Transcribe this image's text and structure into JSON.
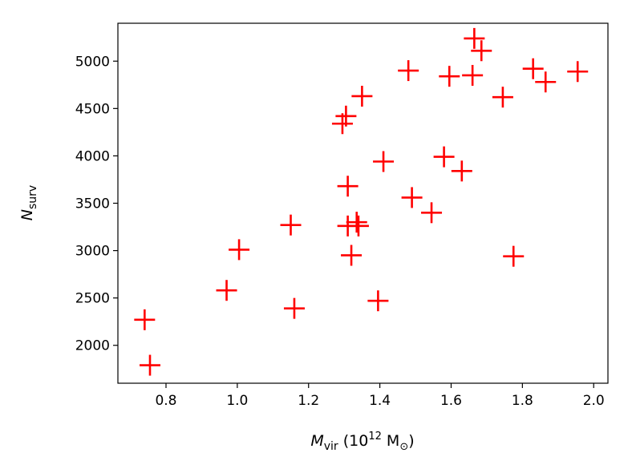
{
  "chart_data": {
    "type": "scatter",
    "xlabel_main": "M",
    "xlabel_sub": "vir",
    "xlabel_unit_open": " (10",
    "xlabel_unit_exp": "12",
    "xlabel_unit_mid": " M",
    "xlabel_unit_sub": "⊙",
    "xlabel_unit_close": ")",
    "ylabel_main": "N",
    "ylabel_sub": "surv",
    "xlim": [
      0.665,
      2.04
    ],
    "ylim": [
      1600,
      5400
    ],
    "xticks": [
      0.8,
      1.0,
      1.2,
      1.4,
      1.6,
      1.8,
      2.0
    ],
    "xtick_labels": [
      "0.8",
      "1.0",
      "1.2",
      "1.4",
      "1.6",
      "1.8",
      "2.0"
    ],
    "yticks": [
      2000,
      2500,
      3000,
      3500,
      4000,
      4500,
      5000
    ],
    "ytick_labels": [
      "2000",
      "2500",
      "3000",
      "3500",
      "4000",
      "4500",
      "5000"
    ],
    "marker": "+",
    "marker_color": "#ff0000",
    "grid": false,
    "points": [
      {
        "x": 0.74,
        "y": 2270
      },
      {
        "x": 0.755,
        "y": 1790
      },
      {
        "x": 0.97,
        "y": 2580
      },
      {
        "x": 1.005,
        "y": 3010
      },
      {
        "x": 1.15,
        "y": 3270
      },
      {
        "x": 1.16,
        "y": 2390
      },
      {
        "x": 1.295,
        "y": 4340
      },
      {
        "x": 1.305,
        "y": 4420
      },
      {
        "x": 1.31,
        "y": 3680
      },
      {
        "x": 1.31,
        "y": 3260
      },
      {
        "x": 1.32,
        "y": 2950
      },
      {
        "x": 1.335,
        "y": 3300
      },
      {
        "x": 1.34,
        "y": 3260
      },
      {
        "x": 1.35,
        "y": 4630
      },
      {
        "x": 1.395,
        "y": 2470
      },
      {
        "x": 1.41,
        "y": 3940
      },
      {
        "x": 1.48,
        "y": 4900
      },
      {
        "x": 1.49,
        "y": 3560
      },
      {
        "x": 1.545,
        "y": 3400
      },
      {
        "x": 1.58,
        "y": 3990
      },
      {
        "x": 1.595,
        "y": 4840
      },
      {
        "x": 1.63,
        "y": 3840
      },
      {
        "x": 1.66,
        "y": 4850
      },
      {
        "x": 1.665,
        "y": 5240
      },
      {
        "x": 1.685,
        "y": 5110
      },
      {
        "x": 1.745,
        "y": 4620
      },
      {
        "x": 1.775,
        "y": 2940
      },
      {
        "x": 1.83,
        "y": 4920
      },
      {
        "x": 1.865,
        "y": 4780
      },
      {
        "x": 1.955,
        "y": 4890
      }
    ]
  }
}
